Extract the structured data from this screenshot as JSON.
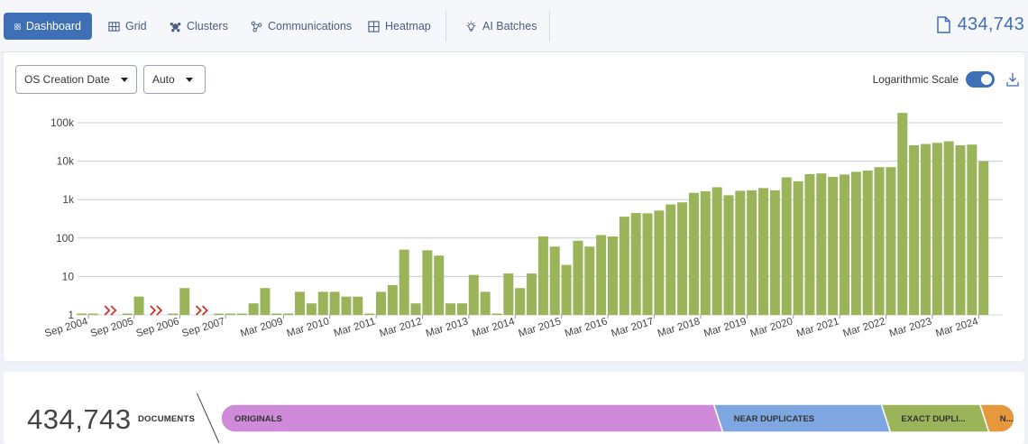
{
  "nav": {
    "tabs": [
      {
        "label": "Dashboard",
        "icon": "dashboard-icon",
        "active": true
      },
      {
        "label": "Grid",
        "icon": "grid-icon",
        "active": false
      },
      {
        "label": "Clusters",
        "icon": "clusters-icon",
        "active": false
      },
      {
        "label": "Communications",
        "icon": "communications-icon",
        "active": false
      },
      {
        "label": "Heatmap",
        "icon": "heatmap-icon",
        "active": false
      },
      {
        "label": "AI Batches",
        "icon": "lightbulb-icon",
        "active": false
      }
    ],
    "document_total": "434,743"
  },
  "controls": {
    "date_field": "OS Creation Date",
    "interval": "Auto",
    "log_scale_label": "Logarithmic Scale",
    "log_scale_on": true
  },
  "colors": {
    "accent": "#3f6fb5",
    "bar": "#9bb45a",
    "break_marker": "#c8332b",
    "originals": "#cf8ad9",
    "near_duplicates": "#7ea6e0",
    "exact_duplicates": "#9bb45a",
    "other": "#e5993c"
  },
  "chart_data": {
    "type": "bar",
    "scale": "log",
    "ylim": [
      1,
      200000
    ],
    "yticks": [
      {
        "value": 1,
        "label": "1"
      },
      {
        "value": 10,
        "label": "10"
      },
      {
        "value": 100,
        "label": "100"
      },
      {
        "value": 1000,
        "label": "1k"
      },
      {
        "value": 10000,
        "label": "10k"
      },
      {
        "value": 100000,
        "label": "100k"
      }
    ],
    "grid": true,
    "segment_gaps_after": [
      1,
      3,
      5
    ],
    "values": [
      1,
      1,
      1,
      3,
      1,
      5,
      1,
      1,
      1,
      2,
      5,
      1,
      1,
      4,
      2,
      4,
      4,
      3,
      3,
      1,
      4,
      6,
      50,
      2,
      48,
      35,
      2,
      2,
      11,
      4,
      1,
      12,
      5,
      12,
      110,
      60,
      20,
      85,
      60,
      120,
      110,
      360,
      450,
      440,
      520,
      750,
      850,
      1500,
      1650,
      2100,
      1300,
      1700,
      1750,
      2000,
      1750,
      3800,
      3000,
      4600,
      4800,
      3900,
      4500,
      5300,
      5700,
      7000,
      7000,
      180000,
      26000,
      28000,
      30000,
      33000,
      26000,
      27000,
      10000
    ],
    "xticks": [
      {
        "index": 0,
        "label": "Sep 2004"
      },
      {
        "index": 2,
        "label": "Sep 2005"
      },
      {
        "index": 4,
        "label": "Sep 2006"
      },
      {
        "index": 6,
        "label": "Sep 2007"
      },
      {
        "index": 11,
        "label": "Mar 2009"
      },
      {
        "index": 15,
        "label": "Mar 2010"
      },
      {
        "index": 19,
        "label": "Mar 2011"
      },
      {
        "index": 23,
        "label": "Mar 2012"
      },
      {
        "index": 27,
        "label": "Mar 2013"
      },
      {
        "index": 31,
        "label": "Mar 2014"
      },
      {
        "index": 35,
        "label": "Mar 2015"
      },
      {
        "index": 39,
        "label": "Mar 2016"
      },
      {
        "index": 43,
        "label": "Mar 2017"
      },
      {
        "index": 47,
        "label": "Mar 2018"
      },
      {
        "index": 51,
        "label": "Mar 2019"
      },
      {
        "index": 55,
        "label": "Mar 2020"
      },
      {
        "index": 59,
        "label": "Mar 2021"
      },
      {
        "index": 63,
        "label": "Mar 2022"
      },
      {
        "index": 67,
        "label": "Mar 2023"
      },
      {
        "index": 71,
        "label": "Mar 2024"
      }
    ]
  },
  "summary": {
    "count": "434,743",
    "count_label": "DOCUMENTS",
    "segments": [
      {
        "label": "ORIGINALS",
        "share": 0.5,
        "color": "#cf8ad9"
      },
      {
        "label": "NEAR DUPLICATES",
        "share": 0.17,
        "color": "#7ea6e0"
      },
      {
        "label": "EXACT DUPLI...",
        "share": 0.1,
        "color": "#9bb45a"
      },
      {
        "label": "N...",
        "share": 0.035,
        "color": "#e5993c"
      }
    ]
  }
}
